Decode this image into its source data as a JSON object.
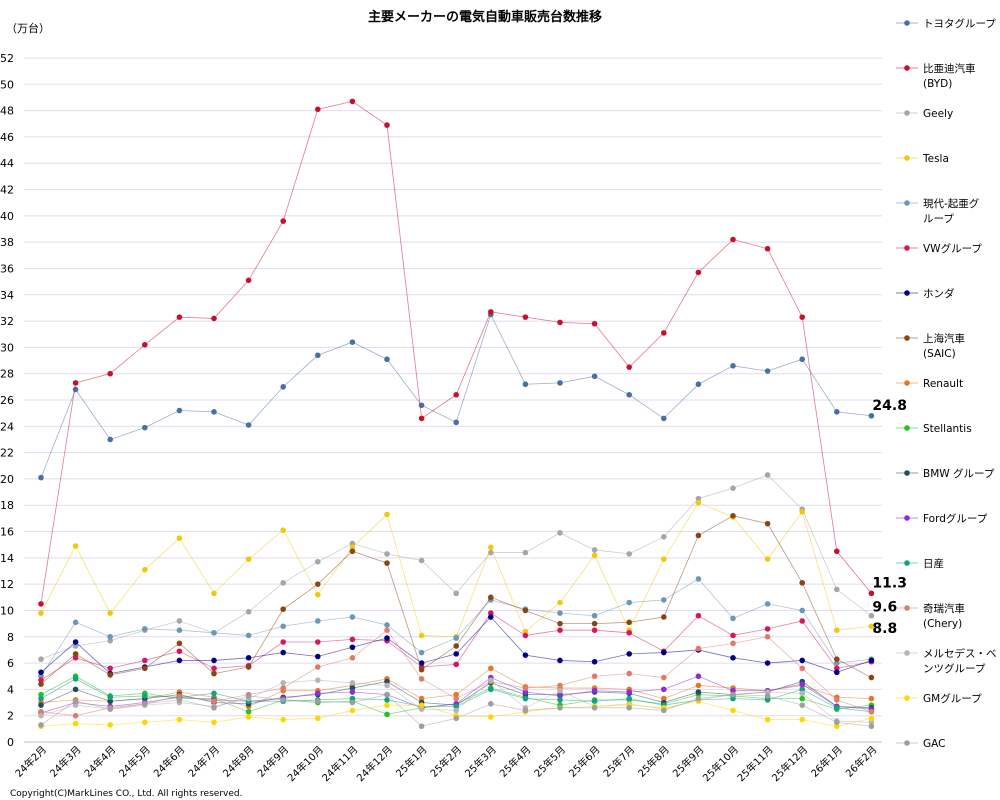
{
  "chart_data": {
    "type": "line",
    "title": "主要メーカーの電気自動車販売台数推移",
    "ylabel": "（万台）",
    "ylim": [
      0,
      52
    ],
    "ytick_step": 2,
    "categories": [
      "24年2月",
      "24年3月",
      "24年4月",
      "24年5月",
      "24年6月",
      "24年7月",
      "24年8月",
      "24年9月",
      "24年10月",
      "24年11月",
      "24年12月",
      "25年1月",
      "25年2月",
      "25年3月",
      "25年4月",
      "25年5月",
      "25年6月",
      "25年7月",
      "25年8月",
      "25年9月",
      "25年10月",
      "25年11月",
      "25年12月",
      "26年1月",
      "26年2月"
    ],
    "series": [
      {
        "name": "トヨタグループ",
        "legend_lines": [
          "トヨタグループ"
        ],
        "color": "#4a6fa5",
        "values": [
          20.1,
          26.8,
          23.0,
          23.9,
          25.2,
          25.1,
          24.1,
          27.0,
          29.4,
          30.4,
          29.1,
          25.6,
          24.3,
          32.5,
          27.2,
          27.3,
          27.8,
          26.4,
          24.6,
          27.2,
          28.6,
          28.2,
          29.1,
          25.1,
          24.8
        ]
      },
      {
        "name": "比亜迪汽車(BYD)",
        "legend_lines": [
          "比亜迪汽車",
          "(BYD)"
        ],
        "color": "#c8102e",
        "values": [
          10.5,
          27.3,
          28.0,
          30.2,
          32.3,
          32.2,
          35.1,
          39.6,
          48.1,
          48.7,
          46.9,
          24.6,
          26.4,
          32.7,
          32.3,
          31.9,
          31.8,
          28.5,
          31.1,
          35.7,
          38.2,
          37.5,
          32.3,
          14.5,
          11.3
        ]
      },
      {
        "name": "Geely",
        "legend_lines": [
          "Geely"
        ],
        "color": "#a6a6a6",
        "values": [
          6.3,
          7.3,
          7.7,
          8.5,
          9.2,
          8.3,
          9.9,
          12.1,
          13.7,
          15.1,
          14.3,
          13.8,
          11.3,
          14.4,
          14.4,
          15.9,
          14.6,
          14.3,
          15.6,
          18.5,
          19.3,
          20.3,
          17.7,
          11.6,
          9.6
        ]
      },
      {
        "name": "Tesla",
        "legend_lines": [
          "Tesla"
        ],
        "color": "#f2c80f",
        "values": [
          9.8,
          14.9,
          9.8,
          13.1,
          15.5,
          11.3,
          13.9,
          16.1,
          11.2,
          14.8,
          17.3,
          8.1,
          8.0,
          14.8,
          8.4,
          10.6,
          14.2,
          8.5,
          13.9,
          18.2,
          17.1,
          13.9,
          17.5,
          8.5,
          8.8
        ]
      },
      {
        "name": "現代-起亜グループ",
        "legend_lines": [
          "現代-起亜グ",
          "ループ"
        ],
        "color": "#6b98b8",
        "values": [
          5.0,
          9.1,
          8.0,
          8.6,
          8.5,
          8.3,
          8.1,
          8.8,
          9.2,
          9.5,
          8.9,
          6.8,
          7.9,
          10.8,
          10.1,
          9.8,
          9.6,
          10.6,
          10.8,
          12.4,
          9.4,
          10.5,
          10.0,
          6.0,
          6.3
        ]
      },
      {
        "name": "VWグループ",
        "legend_lines": [
          "VWグループ"
        ],
        "color": "#d6175c",
        "values": [
          4.7,
          6.4,
          5.6,
          6.2,
          6.9,
          5.6,
          5.8,
          7.6,
          7.6,
          7.8,
          7.7,
          5.7,
          5.9,
          9.8,
          8.1,
          8.5,
          8.5,
          8.3,
          6.9,
          9.6,
          8.1,
          8.6,
          9.2,
          5.6,
          6.1
        ]
      },
      {
        "name": "ホンダ",
        "legend_lines": [
          "ホンダ"
        ],
        "color": "#00008b",
        "values": [
          5.3,
          7.6,
          5.2,
          5.7,
          6.2,
          6.2,
          6.4,
          6.8,
          6.5,
          7.2,
          7.9,
          6.0,
          6.7,
          9.5,
          6.6,
          6.2,
          6.1,
          6.7,
          6.8,
          7.0,
          6.4,
          6.0,
          6.2,
          5.3,
          6.2
        ]
      },
      {
        "name": "上海汽車(SAIC)",
        "legend_lines": [
          "上海汽車",
          "(SAIC)"
        ],
        "color": "#8b4513",
        "values": [
          4.4,
          6.7,
          5.1,
          5.6,
          7.5,
          5.2,
          5.7,
          10.1,
          12.0,
          14.5,
          13.6,
          5.5,
          7.3,
          11.0,
          10.0,
          9.0,
          9.0,
          9.1,
          9.5,
          15.7,
          17.2,
          16.6,
          12.1,
          6.3,
          4.9
        ]
      },
      {
        "name": "Renault",
        "legend_lines": [
          "Renault"
        ],
        "color": "#e87722",
        "values": [
          3.0,
          3.2,
          3.1,
          3.3,
          3.8,
          3.4,
          2.7,
          3.9,
          3.9,
          4.3,
          4.8,
          3.3,
          3.6,
          5.6,
          4.2,
          4.1,
          4.1,
          4.0,
          3.3,
          4.3,
          4.1,
          3.9,
          4.3,
          3.4,
          3.3
        ]
      },
      {
        "name": "Stellantis",
        "legend_lines": [
          "Stellantis"
        ],
        "color": "#22c322",
        "values": [
          3.6,
          5.0,
          3.5,
          3.7,
          3.3,
          3.3,
          2.3,
          3.2,
          3.0,
          3.1,
          2.1,
          2.6,
          2.9,
          4.1,
          3.4,
          2.8,
          3.2,
          3.2,
          2.9,
          3.6,
          3.5,
          3.3,
          3.3,
          2.5,
          2.8
        ]
      },
      {
        "name": "BMW グループ",
        "legend_lines": [
          "BMW グループ"
        ],
        "color": "#1f4e5f",
        "values": [
          2.8,
          4.0,
          3.1,
          3.3,
          3.6,
          3.0,
          2.9,
          3.4,
          3.6,
          4.1,
          4.6,
          3.0,
          2.8,
          4.5,
          3.6,
          3.6,
          3.8,
          3.7,
          3.0,
          3.8,
          3.6,
          3.8,
          4.6,
          2.7,
          2.6
        ]
      },
      {
        "name": "Fordグループ",
        "legend_lines": [
          "Fordグループ"
        ],
        "color": "#8a2be2",
        "values": [
          2.2,
          3.0,
          2.7,
          3.0,
          3.4,
          3.2,
          3.1,
          3.3,
          3.7,
          3.8,
          3.6,
          2.6,
          2.9,
          4.9,
          3.8,
          3.5,
          3.9,
          3.8,
          4.0,
          5.0,
          3.9,
          3.9,
          4.4,
          2.7,
          2.5
        ]
      },
      {
        "name": "日産",
        "legend_lines": [
          "日産"
        ],
        "color": "#10a37f",
        "values": [
          3.3,
          4.8,
          3.4,
          3.5,
          3.4,
          3.7,
          3.1,
          3.1,
          3.2,
          3.3,
          3.2,
          2.7,
          2.7,
          4.0,
          3.3,
          3.2,
          3.1,
          3.3,
          2.8,
          3.2,
          3.3,
          3.2,
          4.0,
          2.6,
          2.3
        ]
      },
      {
        "name": "奇瑞汽車(Chery)",
        "legend_lines": [
          "奇瑞汽車",
          "(Chery)"
        ],
        "color": "#e07b6a",
        "values": [
          2.3,
          2.0,
          2.6,
          2.9,
          3.5,
          3.1,
          3.6,
          4.1,
          5.7,
          6.4,
          8.5,
          4.8,
          3.3,
          4.6,
          4.1,
          4.3,
          5.0,
          5.2,
          4.9,
          7.1,
          7.5,
          8.0,
          5.6,
          3.2,
          2.3
        ]
      },
      {
        "name": "メルセデス・ベンツグループ",
        "legend_lines": [
          "メルセデス・ベ",
          "ンツグループ"
        ],
        "color": "#b5b5b5",
        "values": [
          2.0,
          2.8,
          2.5,
          2.8,
          3.0,
          2.7,
          3.3,
          4.5,
          4.7,
          4.5,
          4.3,
          2.5,
          2.4,
          4.7,
          2.6,
          3.9,
          2.7,
          2.9,
          2.5,
          3.2,
          3.6,
          3.8,
          3.7,
          1.6,
          1.5
        ]
      },
      {
        "name": "GMグループ",
        "legend_lines": [
          "GMグループ"
        ],
        "color": "#ffd700",
        "values": [
          1.2,
          1.4,
          1.3,
          1.5,
          1.7,
          1.5,
          1.9,
          1.7,
          1.8,
          2.4,
          2.8,
          2.8,
          2.0,
          1.9,
          2.3,
          2.6,
          2.7,
          2.8,
          2.6,
          3.1,
          2.4,
          1.7,
          1.7,
          1.2,
          1.8
        ]
      },
      {
        "name": "GAC",
        "legend_lines": [
          "GAC"
        ],
        "color": "#9e9e9e",
        "values": [
          1.3,
          3.1,
          2.5,
          2.9,
          3.2,
          2.6,
          3.5,
          3.2,
          3.1,
          3.0,
          3.6,
          1.2,
          1.8,
          2.9,
          2.4,
          2.6,
          2.6,
          2.6,
          2.4,
          3.3,
          3.6,
          3.5,
          2.8,
          1.5,
          1.2
        ]
      }
    ],
    "end_labels": [
      {
        "text": "24.8",
        "series": "トヨタグループ"
      },
      {
        "text": "11.3",
        "series": "比亜迪汽車(BYD)"
      },
      {
        "text": "9.6",
        "series": "Geely"
      },
      {
        "text": "8.8",
        "series": "Tesla"
      }
    ],
    "legend_position": "right",
    "copyright": "Copyright(C)MarkLines CO., Ltd. All rights reserved."
  }
}
